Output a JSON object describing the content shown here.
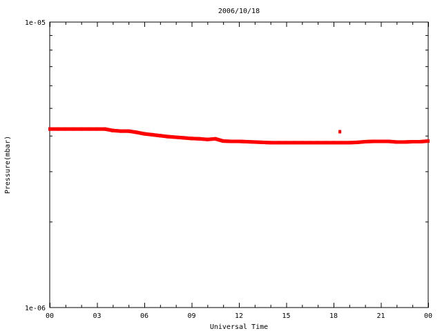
{
  "chart_data": {
    "type": "scatter",
    "title": "2006/10/18",
    "xlabel": "Universal Time",
    "ylabel": "Pressure(mbar)",
    "xlim": [
      0,
      24
    ],
    "ylim": [
      1e-06,
      1e-05
    ],
    "yscale": "log",
    "grid": false,
    "x_tick_labels": [
      "00",
      "03",
      "06",
      "09",
      "12",
      "15",
      "18",
      "21",
      "00"
    ],
    "y_tick_labels": [
      "1e-06",
      "1e-05"
    ],
    "marker_color": "#ff0000",
    "x": [
      0,
      0.5,
      1,
      1.5,
      2,
      2.5,
      3,
      3.5,
      4,
      4.5,
      5,
      5.5,
      6,
      6.5,
      7,
      7.5,
      8,
      8.5,
      9,
      9.5,
      10,
      10.5,
      11,
      11.5,
      12,
      12.5,
      13,
      13.5,
      14,
      14.5,
      15,
      15.5,
      16,
      16.5,
      17,
      17.5,
      18,
      18.4,
      18.5,
      19,
      19.5,
      20,
      20.5,
      21,
      21.5,
      22,
      22.5,
      23,
      23.5,
      24
    ],
    "y": [
      4.22e-06,
      4.22e-06,
      4.22e-06,
      4.22e-06,
      4.22e-06,
      4.22e-06,
      4.22e-06,
      4.22e-06,
      4.17e-06,
      4.15e-06,
      4.15e-06,
      4.11e-06,
      4.06e-06,
      4.03e-06,
      4e-06,
      3.97e-06,
      3.95e-06,
      3.93e-06,
      3.91e-06,
      3.9e-06,
      3.88e-06,
      3.9e-06,
      3.83e-06,
      3.82e-06,
      3.82e-06,
      3.81e-06,
      3.8e-06,
      3.79e-06,
      3.78e-06,
      3.78e-06,
      3.78e-06,
      3.78e-06,
      3.78e-06,
      3.78e-06,
      3.78e-06,
      3.78e-06,
      3.78e-06,
      4.13e-06,
      3.78e-06,
      3.78e-06,
      3.79e-06,
      3.81e-06,
      3.82e-06,
      3.82e-06,
      3.82e-06,
      3.8e-06,
      3.8e-06,
      3.81e-06,
      3.81e-06,
      3.83e-06
    ]
  }
}
